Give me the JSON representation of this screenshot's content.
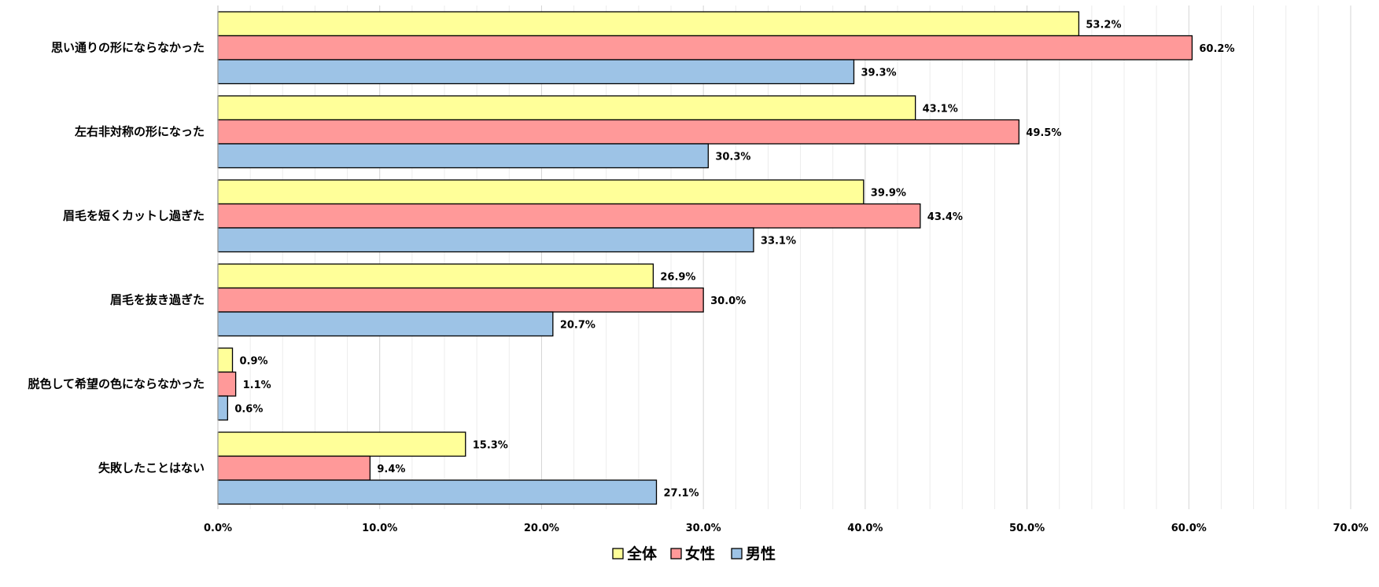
{
  "chart_data": {
    "type": "bar",
    "orientation": "horizontal",
    "title": "",
    "xlabel": "",
    "ylabel": "",
    "xlim": [
      0,
      70
    ],
    "x_ticks": [
      "0.0%",
      "10.0%",
      "20.0%",
      "30.0%",
      "40.0%",
      "50.0%",
      "60.0%",
      "70.0%"
    ],
    "x_tick_values": [
      0,
      10,
      20,
      30,
      40,
      50,
      60,
      70
    ],
    "grid": true,
    "legend_position": "bottom-center",
    "categories": [
      "思い通りの形にならなかった",
      "左右非対称の形になった",
      "眉毛を短くカットし過ぎた",
      "眉毛を抜き過ぎた",
      "脱色して希望の色にならなかった",
      "失敗したことはない"
    ],
    "series": [
      {
        "name": "全体",
        "color": "#FFFF99",
        "values": [
          53.2,
          43.1,
          39.9,
          26.9,
          0.9,
          15.3
        ],
        "labels": [
          "53.2%",
          "43.1%",
          "39.9%",
          "26.9%",
          "0.9%",
          "15.3%"
        ]
      },
      {
        "name": "女性",
        "color": "#FF9999",
        "values": [
          60.2,
          49.5,
          43.4,
          30.0,
          1.1,
          9.4
        ],
        "labels": [
          "60.2%",
          "49.5%",
          "43.4%",
          "30.0%",
          "1.1%",
          "9.4%"
        ]
      },
      {
        "name": "男性",
        "color": "#9DC3E6",
        "values": [
          39.3,
          30.3,
          33.1,
          20.7,
          0.6,
          27.1
        ],
        "labels": [
          "39.3%",
          "30.3%",
          "33.1%",
          "20.7%",
          "0.6%",
          "27.1%"
        ]
      }
    ]
  }
}
